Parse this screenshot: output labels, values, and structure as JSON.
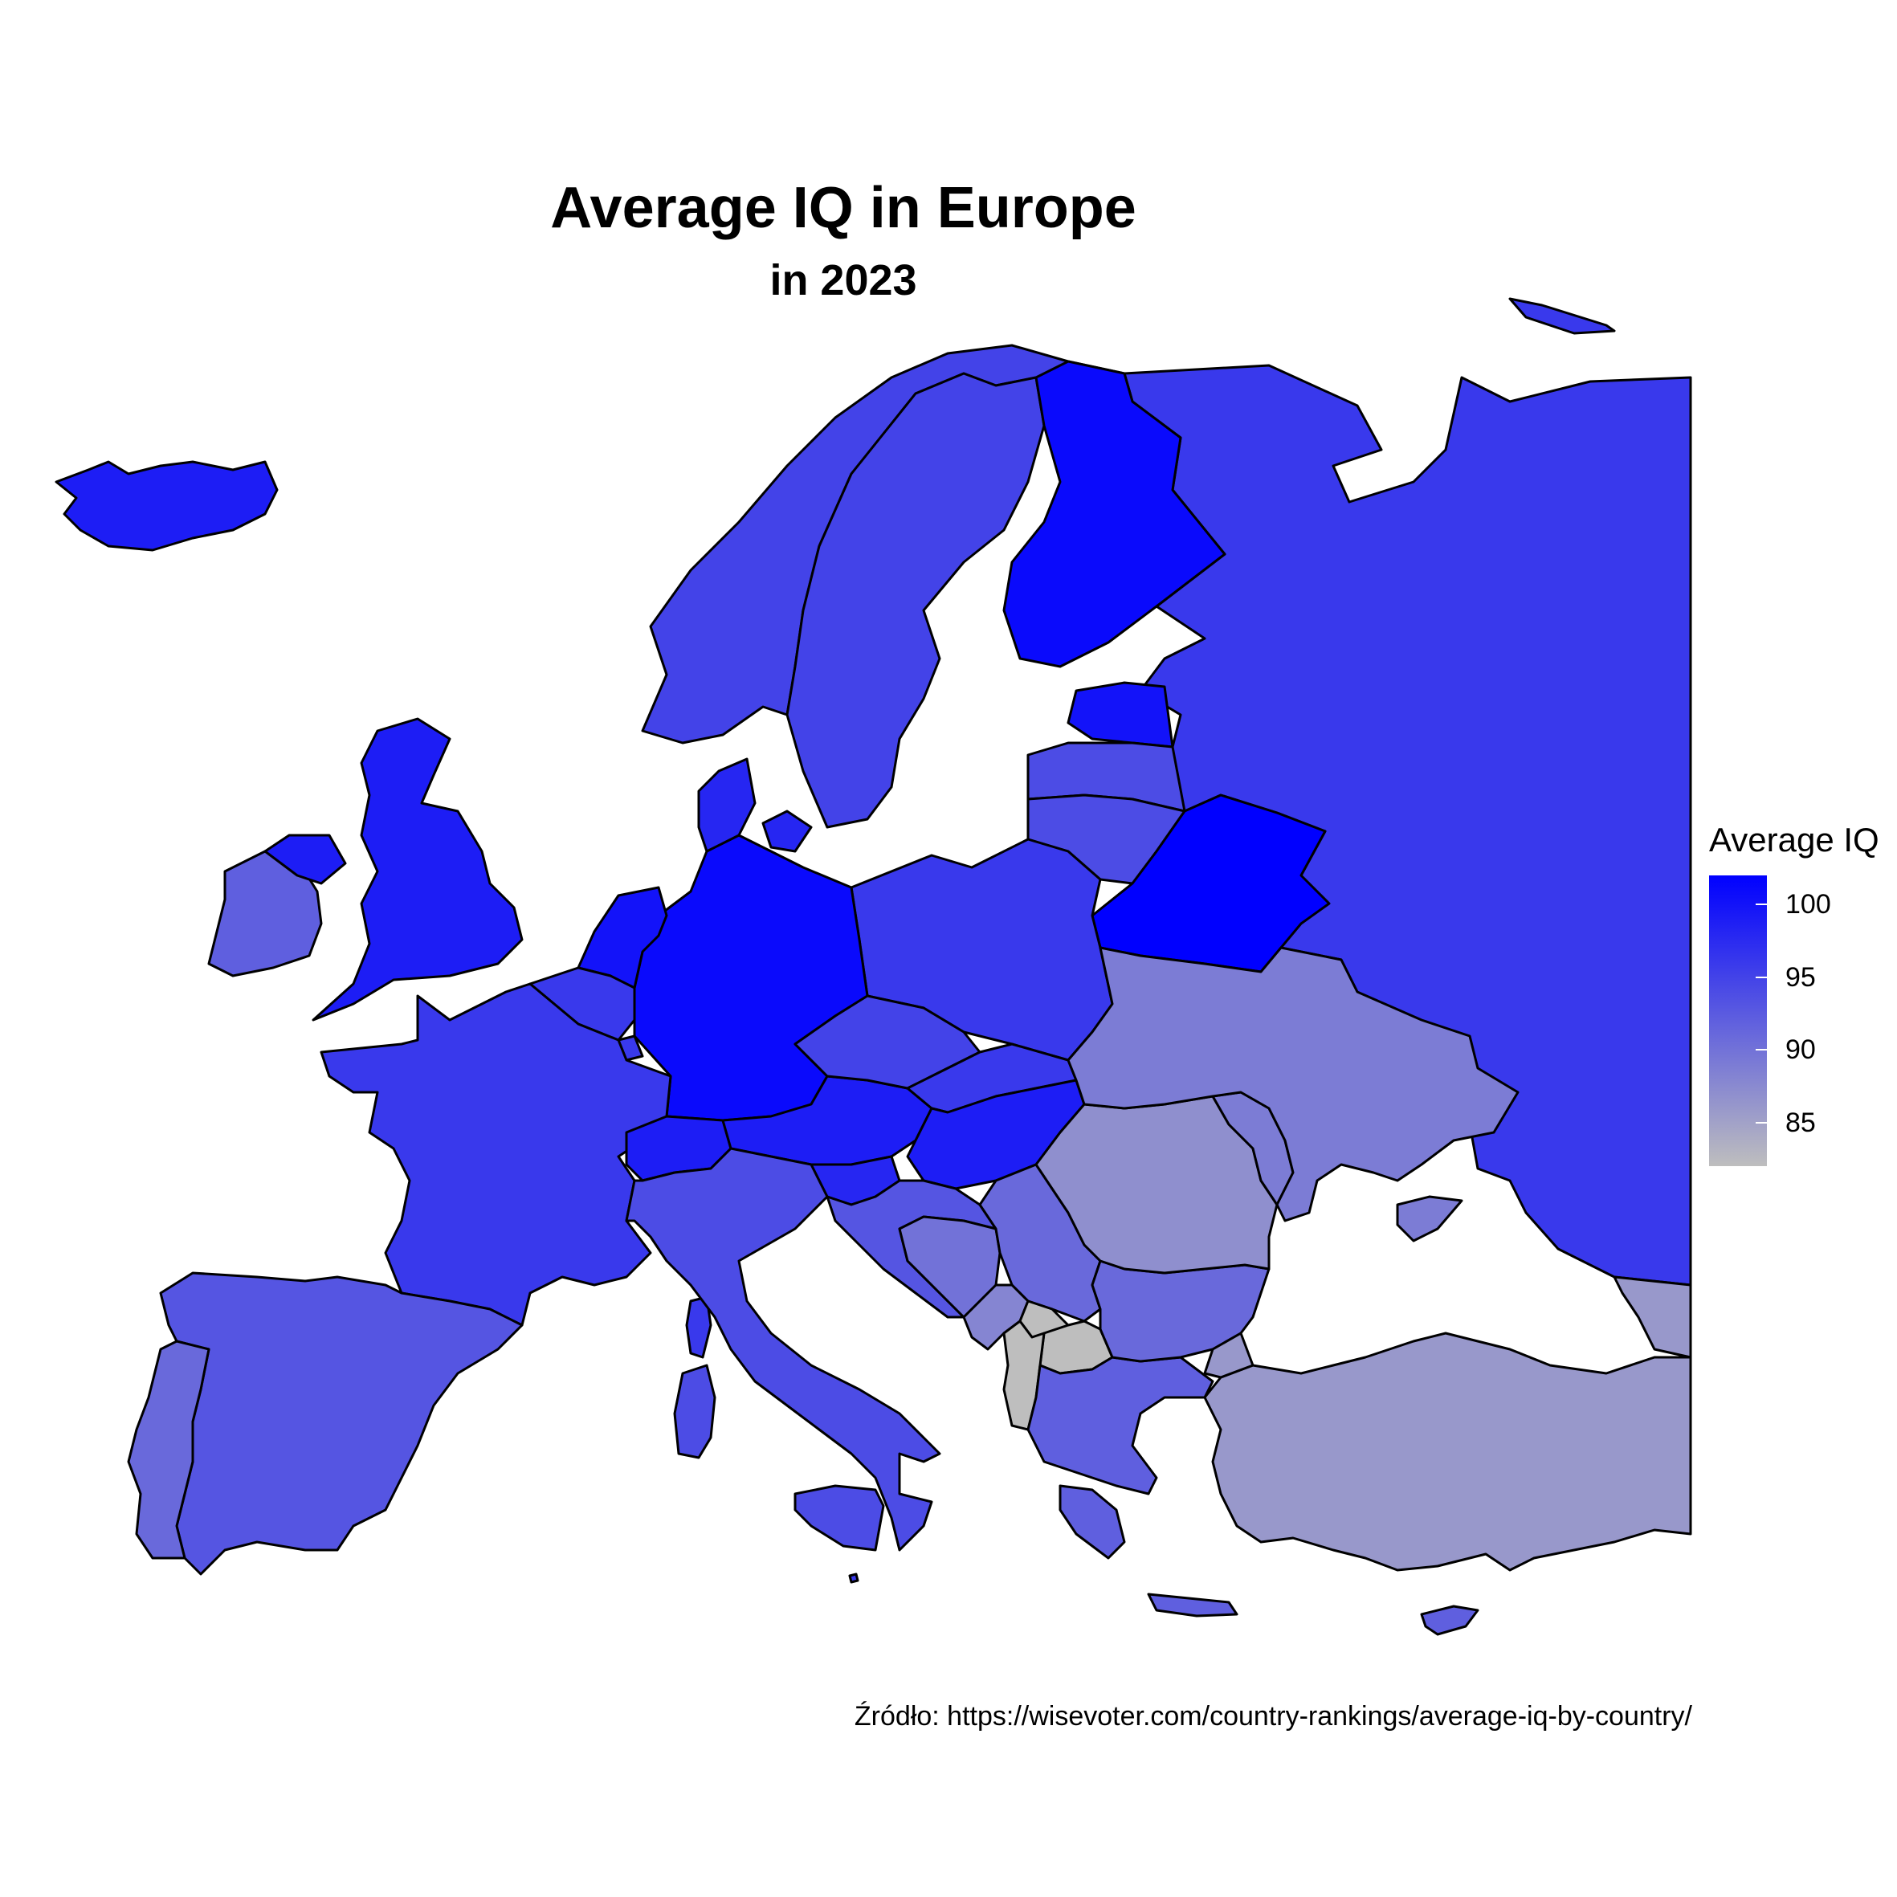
{
  "title": "Average IQ in Europe",
  "subtitle": "in 2023",
  "caption": "Źródło: https://wisevoter.com/country-rankings/average-iq-by-country/",
  "legend": {
    "title": "Average IQ",
    "ticks": [
      100,
      95,
      90,
      85
    ],
    "domain": [
      82,
      102
    ],
    "low_color": "#BEBEBE",
    "high_color": "#0000FF",
    "no_data_color": "#BEBEBE"
  },
  "colors": {
    "water": "#FFFFFF",
    "border": "#000000"
  },
  "map_data": {
    "type": "choropleth",
    "variable": "Average IQ",
    "countries": [
      {
        "name": "Iceland",
        "iq": 99
      },
      {
        "name": "Ireland",
        "iq": 92
      },
      {
        "name": "United Kingdom",
        "iq": 99
      },
      {
        "name": "Norway",
        "iq": 95
      },
      {
        "name": "Sweden",
        "iq": 95
      },
      {
        "name": "Finland",
        "iq": 101
      },
      {
        "name": "Denmark",
        "iq": 98
      },
      {
        "name": "Estonia",
        "iq": 100
      },
      {
        "name": "Latvia",
        "iq": 94
      },
      {
        "name": "Lithuania",
        "iq": 94
      },
      {
        "name": "Belarus",
        "iq": 102
      },
      {
        "name": "Poland",
        "iq": 96
      },
      {
        "name": "Germany",
        "iq": 101
      },
      {
        "name": "Netherlands",
        "iq": 100
      },
      {
        "name": "Belgium",
        "iq": 96
      },
      {
        "name": "Luxembourg",
        "iq": 96
      },
      {
        "name": "France",
        "iq": 96
      },
      {
        "name": "Switzerland",
        "iq": 99
      },
      {
        "name": "Austria",
        "iq": 99
      },
      {
        "name": "Czechia",
        "iq": 95
      },
      {
        "name": "Slovakia",
        "iq": 96
      },
      {
        "name": "Hungary",
        "iq": 99
      },
      {
        "name": "Slovenia",
        "iq": 98
      },
      {
        "name": "Italy",
        "iq": 94
      },
      {
        "name": "Spain",
        "iq": 93
      },
      {
        "name": "Portugal",
        "iq": 91
      },
      {
        "name": "Croatia",
        "iq": 93
      },
      {
        "name": "Bosnia and Herzegovina",
        "iq": 90
      },
      {
        "name": "Serbia",
        "iq": 91
      },
      {
        "name": "Montenegro",
        "iq": 88
      },
      {
        "name": "Kosovo",
        "iq": null
      },
      {
        "name": "North Macedonia",
        "iq": null
      },
      {
        "name": "Albania",
        "iq": null
      },
      {
        "name": "Greece",
        "iq": 92
      },
      {
        "name": "Bulgaria",
        "iq": 91
      },
      {
        "name": "Romania",
        "iq": 87
      },
      {
        "name": "Moldova",
        "iq": 89
      },
      {
        "name": "Ukraine",
        "iq": 89
      },
      {
        "name": "Russia",
        "iq": 96
      },
      {
        "name": "Turkey",
        "iq": 86
      },
      {
        "name": "Georgia",
        "iq": 86
      },
      {
        "name": "Cyprus",
        "iq": 92
      },
      {
        "name": "Malta",
        "iq": 96
      }
    ]
  }
}
